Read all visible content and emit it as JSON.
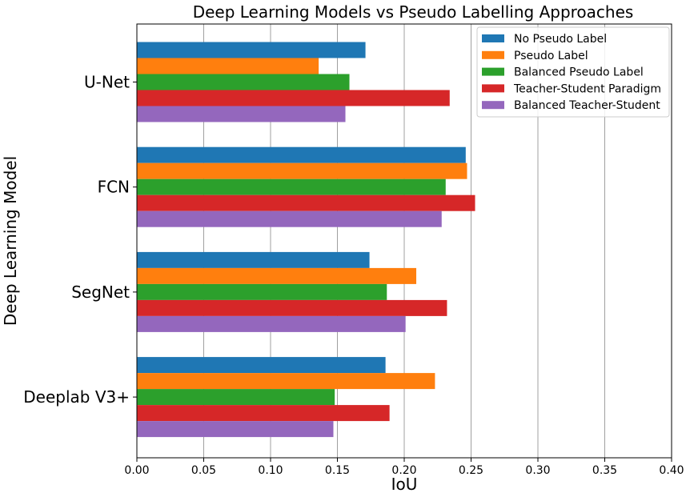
{
  "chart_data": {
    "type": "bar",
    "orientation": "horizontal",
    "title": "Deep Learning Models vs Pseudo Labelling Approaches",
    "xlabel": "IoU",
    "ylabel": "Deep Learning Model",
    "categories": [
      "U-Net",
      "FCN",
      "SegNet",
      "Deeplab V3+"
    ],
    "xlim": [
      0,
      0.4
    ],
    "xticks": [
      "0.00",
      "0.05",
      "0.10",
      "0.15",
      "0.20",
      "0.25",
      "0.30",
      "0.35",
      "0.40"
    ],
    "grid": "vertical",
    "legend_position": "top-right",
    "series": [
      {
        "name": "No Pseudo Label",
        "color": "#1f77b4",
        "values": [
          0.171,
          0.246,
          0.174,
          0.186
        ]
      },
      {
        "name": "Pseudo Label",
        "color": "#ff7f0e",
        "values": [
          0.136,
          0.247,
          0.209,
          0.223
        ]
      },
      {
        "name": "Balanced Pseudo Label",
        "color": "#2ca02c",
        "values": [
          0.159,
          0.231,
          0.187,
          0.148
        ]
      },
      {
        "name": "Teacher-Student Paradigm",
        "color": "#d62728",
        "values": [
          0.234,
          0.253,
          0.232,
          0.189
        ]
      },
      {
        "name": "Balanced Teacher-Student",
        "color": "#9467bd",
        "values": [
          0.156,
          0.228,
          0.201,
          0.147
        ]
      }
    ]
  }
}
